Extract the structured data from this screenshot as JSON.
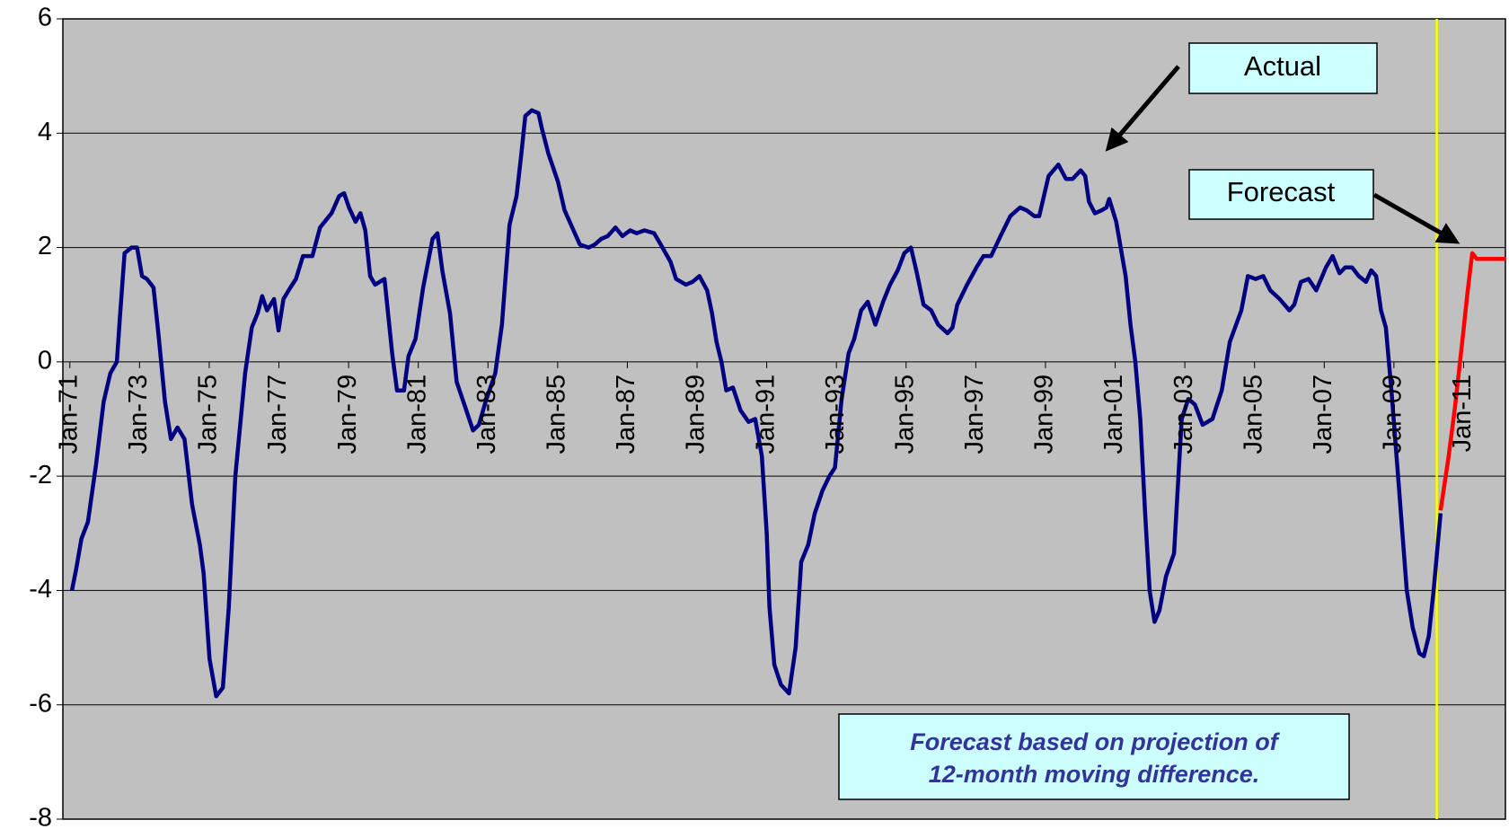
{
  "chart_data": {
    "type": "line",
    "xlim": [
      1970.8,
      2012.2
    ],
    "ylim": [
      -8,
      6
    ],
    "yticks": [
      -8,
      -6,
      -4,
      -2,
      0,
      2,
      4,
      6
    ],
    "xticks": [
      {
        "value": 1971,
        "label": "Jan-71"
      },
      {
        "value": 1973,
        "label": "Jan-73"
      },
      {
        "value": 1975,
        "label": "Jan-75"
      },
      {
        "value": 1977,
        "label": "Jan-77"
      },
      {
        "value": 1979,
        "label": "Jan-79"
      },
      {
        "value": 1981,
        "label": "Jan-81"
      },
      {
        "value": 1983,
        "label": "Jan-83"
      },
      {
        "value": 1985,
        "label": "Jan-85"
      },
      {
        "value": 1987,
        "label": "Jan-87"
      },
      {
        "value": 1989,
        "label": "Jan-89"
      },
      {
        "value": 1991,
        "label": "Jan-91"
      },
      {
        "value": 1993,
        "label": "Jan-93"
      },
      {
        "value": 1995,
        "label": "Jan-95"
      },
      {
        "value": 1997,
        "label": "Jan-97"
      },
      {
        "value": 1999,
        "label": "Jan-99"
      },
      {
        "value": 2001,
        "label": "Jan-01"
      },
      {
        "value": 2003,
        "label": "Jan-03"
      },
      {
        "value": 2005,
        "label": "Jan-05"
      },
      {
        "value": 2007,
        "label": "Jan-07"
      },
      {
        "value": 2009,
        "label": "Jan-09"
      },
      {
        "value": 2011,
        "label": "Jan-11"
      }
    ],
    "grid": true,
    "background": "#c0c0c0",
    "vline": {
      "x": 2010.23,
      "color": "#ffff00"
    },
    "note": [
      "Forecast based on projection of",
      "12-month moving difference."
    ],
    "series": [
      {
        "name": "Actual",
        "color": "#000080",
        "x": [
          1971.06,
          1971.19,
          1971.33,
          1971.52,
          1971.75,
          1971.97,
          1972.16,
          1972.35,
          1972.44,
          1972.57,
          1972.77,
          1972.93,
          1973.07,
          1973.21,
          1973.4,
          1973.54,
          1973.73,
          1973.9,
          1974.09,
          1974.29,
          1974.51,
          1974.73,
          1974.84,
          1975.01,
          1975.2,
          1975.39,
          1975.56,
          1975.75,
          1976.03,
          1976.22,
          1976.39,
          1976.52,
          1976.66,
          1976.86,
          1976.99,
          1977.13,
          1977.33,
          1977.49,
          1977.69,
          1977.96,
          1978.18,
          1978.51,
          1978.73,
          1978.87,
          1979.01,
          1979.2,
          1979.34,
          1979.48,
          1979.62,
          1979.76,
          1980.03,
          1980.25,
          1980.39,
          1980.59,
          1980.72,
          1980.92,
          1981.14,
          1981.41,
          1981.55,
          1981.69,
          1981.91,
          1982.1,
          1982.38,
          1982.57,
          1982.74,
          1982.93,
          1983.21,
          1983.4,
          1983.62,
          1983.82,
          1983.96,
          1984.07,
          1984.26,
          1984.45,
          1984.54,
          1984.73,
          1985.01,
          1985.2,
          1985.42,
          1985.64,
          1985.89,
          1986.06,
          1986.25,
          1986.44,
          1986.66,
          1986.86,
          1987.08,
          1987.27,
          1987.49,
          1987.77,
          1987.96,
          1988.24,
          1988.4,
          1988.68,
          1988.87,
          1989.07,
          1989.29,
          1989.43,
          1989.56,
          1989.7,
          1989.84,
          1990.03,
          1990.25,
          1990.48,
          1990.67,
          1990.86,
          1991.0,
          1991.08,
          1991.22,
          1991.41,
          1991.64,
          1991.83,
          1991.99,
          1992.19,
          1992.38,
          1992.6,
          1992.8,
          1992.96,
          1993.15,
          1993.35,
          1993.51,
          1993.71,
          1993.9,
          1994.12,
          1994.34,
          1994.54,
          1994.76,
          1994.95,
          1995.14,
          1995.31,
          1995.5,
          1995.72,
          1995.92,
          1996.19,
          1996.33,
          1996.47,
          1996.75,
          1997.02,
          1997.22,
          1997.44,
          1997.71,
          1997.99,
          1998.27,
          1998.46,
          1998.68,
          1998.82,
          1999.09,
          1999.37,
          1999.59,
          1999.78,
          2000.01,
          2000.14,
          2000.25,
          2000.42,
          2000.61,
          2000.75,
          2000.83,
          2001.03,
          2001.3,
          2001.44,
          2001.58,
          2001.72,
          2001.86,
          2001.99,
          2002.13,
          2002.27,
          2002.46,
          2002.69,
          2002.91,
          2003.1,
          2003.29,
          2003.51,
          2003.79,
          2004.06,
          2004.29,
          2004.62,
          2004.81,
          2005.03,
          2005.25,
          2005.45,
          2005.72,
          2006.0,
          2006.14,
          2006.33,
          2006.55,
          2006.77,
          2007.05,
          2007.24,
          2007.44,
          2007.6,
          2007.8,
          2007.99,
          2008.2,
          2008.35,
          2008.49,
          2008.63,
          2008.77,
          2008.93,
          2009.12,
          2009.37,
          2009.54,
          2009.73,
          2009.86,
          2010.0,
          2010.14,
          2010.34
        ],
        "values": [
          -4.0,
          -3.6,
          -3.1,
          -2.8,
          -1.8,
          -0.7,
          -0.2,
          0.0,
          0.8,
          1.9,
          2.0,
          2.0,
          1.5,
          1.45,
          1.3,
          0.5,
          -0.7,
          -1.35,
          -1.15,
          -1.35,
          -2.5,
          -3.2,
          -3.7,
          -5.2,
          -5.85,
          -5.7,
          -4.3,
          -2.0,
          -0.2,
          0.6,
          0.85,
          1.15,
          0.9,
          1.1,
          0.55,
          1.1,
          1.3,
          1.45,
          1.85,
          1.85,
          2.35,
          2.6,
          2.9,
          2.95,
          2.7,
          2.45,
          2.6,
          2.3,
          1.5,
          1.35,
          1.45,
          0.15,
          -0.5,
          -0.5,
          0.1,
          0.4,
          1.3,
          2.15,
          2.25,
          1.6,
          0.85,
          -0.35,
          -0.85,
          -1.2,
          -1.1,
          -0.7,
          -0.2,
          0.65,
          2.4,
          2.9,
          3.65,
          4.3,
          4.4,
          4.35,
          4.1,
          3.65,
          3.15,
          2.65,
          2.35,
          2.05,
          2.0,
          2.05,
          2.15,
          2.2,
          2.35,
          2.2,
          2.3,
          2.25,
          2.3,
          2.25,
          2.05,
          1.75,
          1.45,
          1.35,
          1.4,
          1.5,
          1.25,
          0.85,
          0.35,
          0.0,
          -0.5,
          -0.45,
          -0.85,
          -1.05,
          -1.0,
          -1.65,
          -3.0,
          -4.3,
          -5.3,
          -5.65,
          -5.8,
          -5.0,
          -3.5,
          -3.2,
          -2.65,
          -2.25,
          -2.0,
          -1.85,
          -0.65,
          0.15,
          0.4,
          0.9,
          1.05,
          0.65,
          1.05,
          1.35,
          1.6,
          1.9,
          2.0,
          1.55,
          1.0,
          0.9,
          0.65,
          0.5,
          0.6,
          1.0,
          1.35,
          1.65,
          1.85,
          1.85,
          2.2,
          2.55,
          2.7,
          2.65,
          2.55,
          2.55,
          3.25,
          3.45,
          3.2,
          3.2,
          3.35,
          3.25,
          2.8,
          2.6,
          2.65,
          2.7,
          2.85,
          2.45,
          1.5,
          0.65,
          0.0,
          -1.0,
          -2.65,
          -4.0,
          -4.55,
          -4.35,
          -3.75,
          -3.35,
          -1.0,
          -0.65,
          -0.75,
          -1.1,
          -1.0,
          -0.5,
          0.35,
          0.9,
          1.5,
          1.45,
          1.5,
          1.25,
          1.1,
          0.9,
          1.0,
          1.4,
          1.45,
          1.25,
          1.65,
          1.85,
          1.55,
          1.65,
          1.65,
          1.5,
          1.4,
          1.6,
          1.5,
          0.9,
          0.6,
          -0.5,
          -2.0,
          -4.0,
          -4.65,
          -5.1,
          -5.15,
          -4.8,
          -4.0,
          -2.65
        ]
      },
      {
        "name": "Forecast",
        "color": "#ff0000",
        "x": [
          2010.34,
          2010.56,
          2010.75,
          2010.97,
          2011.11,
          2011.25,
          2011.38,
          2012.22
        ],
        "values": [
          -2.6,
          -1.7,
          -0.8,
          0.4,
          1.2,
          1.9,
          1.8,
          1.8
        ]
      }
    ]
  }
}
